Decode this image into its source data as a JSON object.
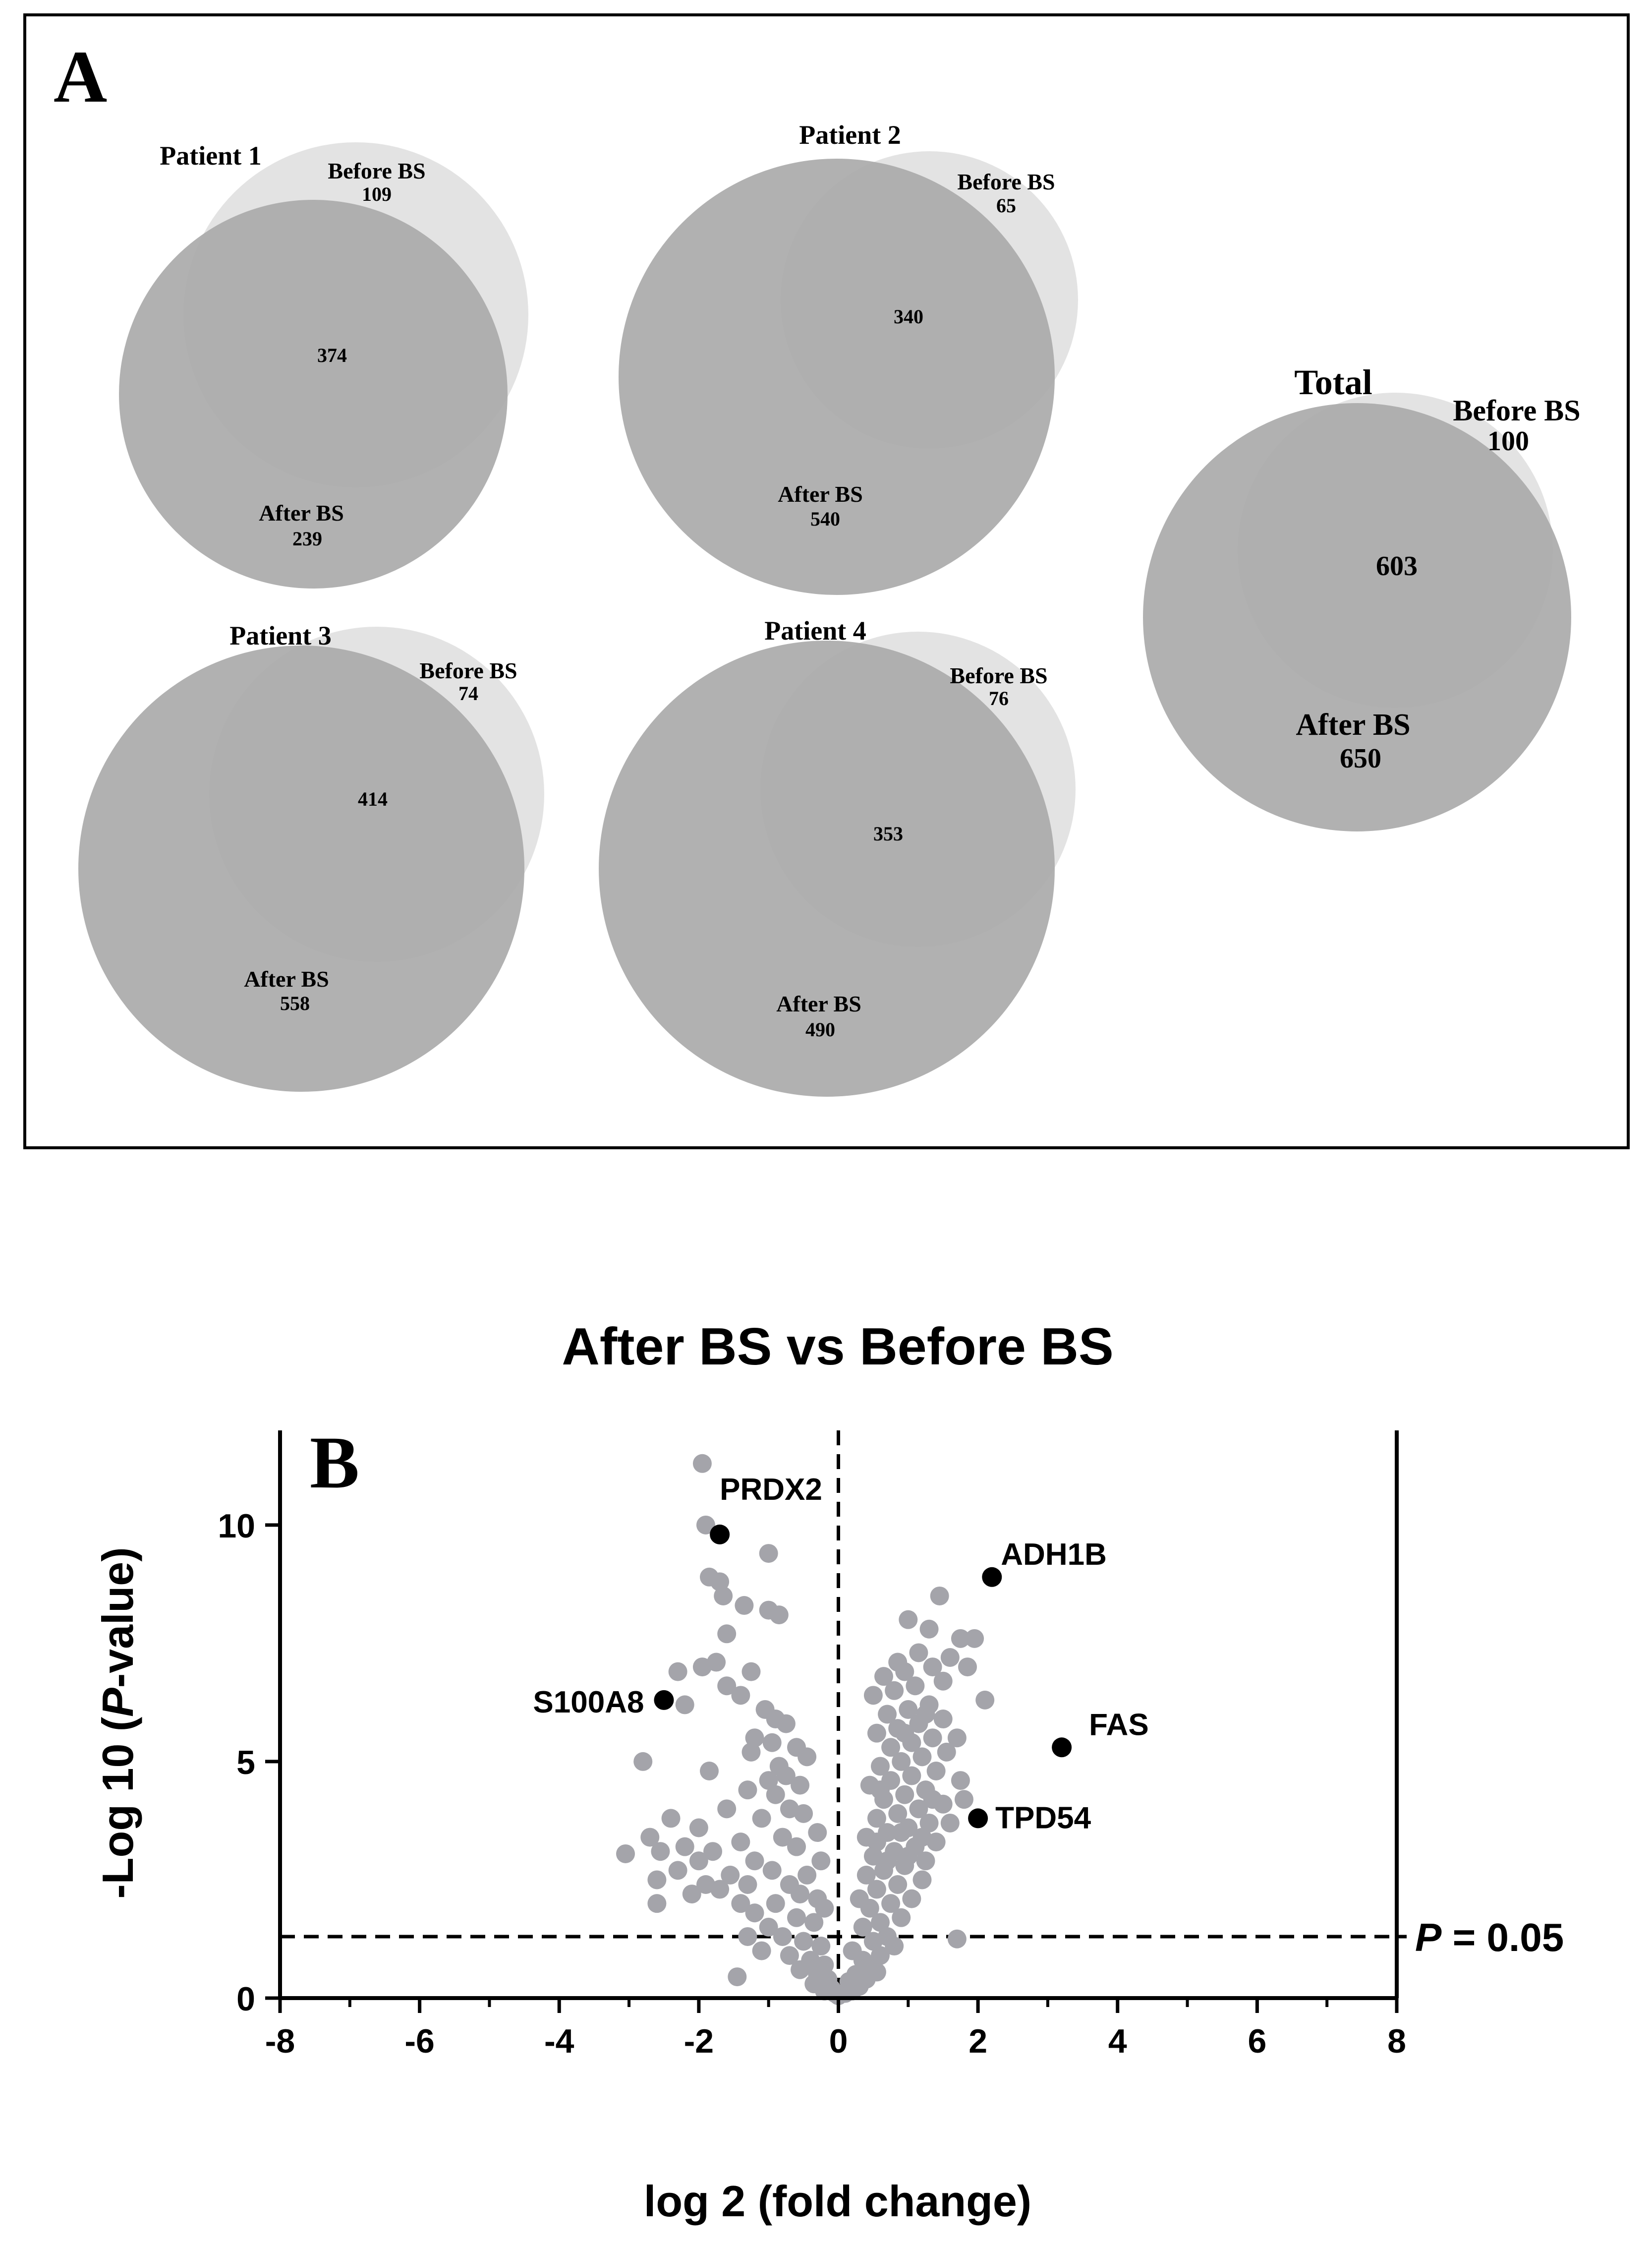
{
  "panel_a": {
    "label": "A",
    "venns": [
      {
        "title": "Patient 1",
        "before_label": "Before BS",
        "before_value": "109",
        "overlap_value": "374",
        "after_label": "After BS",
        "after_value": "239"
      },
      {
        "title": "Patient 2",
        "before_label": "Before BS",
        "before_value": "65",
        "overlap_value": "340",
        "after_label": "After BS",
        "after_value": "540"
      },
      {
        "title": "Patient 3",
        "before_label": "Before BS",
        "before_value": "74",
        "overlap_value": "414",
        "after_label": "After BS",
        "after_value": "558"
      },
      {
        "title": "Patient 4",
        "before_label": "Before BS",
        "before_value": "76",
        "overlap_value": "353",
        "after_label": "After BS",
        "after_value": "490"
      },
      {
        "title": "Total",
        "before_label": "Before BS",
        "before_value": "100",
        "overlap_value": "603",
        "after_label": "After BS",
        "after_value": "650"
      }
    ],
    "colors": {
      "before": "#e3e3e3",
      "after": "#a8a8a8",
      "overlap": "#979797",
      "border": "#000000"
    }
  },
  "chart_data": {
    "type": "scatter",
    "panel_label": "B",
    "title": "After BS vs Before BS",
    "xlabel": "log 2 (fold change)",
    "ylabel_parts": [
      "-Log 10 (",
      "P",
      "-value)"
    ],
    "xlim": [
      -8,
      8
    ],
    "ylim": [
      0,
      12
    ],
    "xticks": [
      "-8",
      "-6",
      "-4",
      "-2",
      "0",
      "2",
      "4",
      "6",
      "8"
    ],
    "yticks": [
      "0",
      "5",
      "10"
    ],
    "threshold": {
      "y": 1.3,
      "label_italic": "P",
      "label_rest": " = 0.05"
    },
    "vertical_line_x": 0,
    "highlighted": [
      {
        "label": "PRDX2",
        "x": -1.7,
        "y": 9.8
      },
      {
        "label": "ADH1B",
        "x": 2.2,
        "y": 8.9
      },
      {
        "label": "S100A8",
        "x": -2.5,
        "y": 6.3
      },
      {
        "label": "FAS",
        "x": 3.2,
        "y": 5.3
      },
      {
        "label": "TPD54",
        "x": 2.0,
        "y": 3.8
      }
    ],
    "points": [
      [
        -1.95,
        11.3
      ],
      [
        -1.9,
        10.0
      ],
      [
        -1.0,
        9.4
      ],
      [
        -1.85,
        8.9
      ],
      [
        -1.7,
        8.8
      ],
      [
        -1.65,
        8.5
      ],
      [
        -1.35,
        8.3
      ],
      [
        -1.0,
        8.2
      ],
      [
        -0.85,
        8.1
      ],
      [
        -1.6,
        7.7
      ],
      [
        -2.3,
        6.9
      ],
      [
        -1.95,
        7.0
      ],
      [
        -1.75,
        7.1
      ],
      [
        -1.25,
        6.9
      ],
      [
        -1.6,
        6.6
      ],
      [
        -1.4,
        6.4
      ],
      [
        -2.2,
        6.2
      ],
      [
        -1.05,
        6.1
      ],
      [
        -0.9,
        5.9
      ],
      [
        -0.75,
        5.8
      ],
      [
        -1.2,
        5.5
      ],
      [
        -0.95,
        5.4
      ],
      [
        -0.6,
        5.3
      ],
      [
        -1.25,
        5.2
      ],
      [
        -0.45,
        5.1
      ],
      [
        -0.85,
        4.9
      ],
      [
        -1.85,
        4.8
      ],
      [
        -1.0,
        4.6
      ],
      [
        -0.75,
        4.7
      ],
      [
        -0.55,
        4.5
      ],
      [
        -2.8,
        5.0
      ],
      [
        -1.3,
        4.4
      ],
      [
        -0.9,
        4.3
      ],
      [
        -0.7,
        4.0
      ],
      [
        -1.6,
        4.0
      ],
      [
        -2.4,
        3.8
      ],
      [
        -1.1,
        3.8
      ],
      [
        -0.5,
        3.9
      ],
      [
        -2.0,
        3.6
      ],
      [
        -0.3,
        3.5
      ],
      [
        -2.7,
        3.4
      ],
      [
        -1.4,
        3.3
      ],
      [
        -0.8,
        3.4
      ],
      [
        -2.2,
        3.2
      ],
      [
        -2.55,
        3.1
      ],
      [
        -1.8,
        3.1
      ],
      [
        -0.6,
        3.2
      ],
      [
        -3.05,
        3.05
      ],
      [
        -2.0,
        2.9
      ],
      [
        -1.2,
        2.9
      ],
      [
        -0.25,
        2.9
      ],
      [
        -2.3,
        2.7
      ],
      [
        -1.55,
        2.6
      ],
      [
        -0.95,
        2.7
      ],
      [
        -0.45,
        2.6
      ],
      [
        -2.6,
        2.5
      ],
      [
        -1.9,
        2.4
      ],
      [
        -1.3,
        2.4
      ],
      [
        -0.7,
        2.4
      ],
      [
        -2.1,
        2.2
      ],
      [
        -1.7,
        2.3
      ],
      [
        -0.55,
        2.2
      ],
      [
        -0.3,
        2.1
      ],
      [
        -2.6,
        2.0
      ],
      [
        -1.4,
        2.0
      ],
      [
        -0.9,
        2.0
      ],
      [
        -0.2,
        1.9
      ],
      [
        -1.2,
        1.8
      ],
      [
        -0.6,
        1.7
      ],
      [
        -0.35,
        1.6
      ],
      [
        -1.0,
        1.5
      ],
      [
        -0.8,
        1.3
      ],
      [
        -1.3,
        1.3
      ],
      [
        -0.5,
        1.2
      ],
      [
        -0.25,
        1.1
      ],
      [
        -1.1,
        1.0
      ],
      [
        -0.7,
        0.9
      ],
      [
        -0.4,
        0.8
      ],
      [
        -0.2,
        0.7
      ],
      [
        -0.55,
        0.6
      ],
      [
        -0.3,
        0.5
      ],
      [
        -0.15,
        0.4
      ],
      [
        -1.45,
        0.45
      ],
      [
        -0.35,
        0.3
      ],
      [
        -0.1,
        0.2
      ],
      [
        -0.2,
        0.15
      ],
      [
        -0.05,
        0.1
      ],
      [
        0.0,
        0.05
      ],
      [
        0.1,
        0.1
      ],
      [
        0.2,
        0.15
      ],
      [
        0.3,
        0.25
      ],
      [
        0.15,
        0.35
      ],
      [
        0.4,
        0.4
      ],
      [
        0.25,
        0.5
      ],
      [
        0.55,
        0.55
      ],
      [
        0.45,
        0.7
      ],
      [
        0.35,
        0.8
      ],
      [
        0.6,
        0.9
      ],
      [
        0.2,
        1.0
      ],
      [
        0.8,
        1.1
      ],
      [
        0.5,
        1.2
      ],
      [
        0.7,
        1.3
      ],
      [
        1.7,
        1.25
      ],
      [
        0.35,
        1.5
      ],
      [
        0.6,
        1.6
      ],
      [
        0.9,
        1.7
      ],
      [
        0.45,
        1.9
      ],
      [
        0.75,
        2.0
      ],
      [
        1.05,
        2.1
      ],
      [
        0.3,
        2.1
      ],
      [
        0.55,
        2.3
      ],
      [
        0.85,
        2.4
      ],
      [
        1.2,
        2.5
      ],
      [
        0.4,
        2.6
      ],
      [
        0.65,
        2.7
      ],
      [
        0.95,
        2.8
      ],
      [
        1.25,
        2.9
      ],
      [
        0.5,
        3.0
      ],
      [
        0.8,
        3.1
      ],
      [
        1.1,
        3.2
      ],
      [
        1.4,
        3.3
      ],
      [
        0.4,
        3.4
      ],
      [
        0.7,
        3.5
      ],
      [
        1.0,
        3.6
      ],
      [
        1.3,
        3.7
      ],
      [
        0.55,
        3.8
      ],
      [
        0.85,
        3.9
      ],
      [
        1.15,
        4.0
      ],
      [
        1.5,
        4.1
      ],
      [
        0.65,
        4.2
      ],
      [
        0.95,
        4.3
      ],
      [
        1.25,
        4.4
      ],
      [
        0.45,
        4.5
      ],
      [
        0.75,
        4.6
      ],
      [
        1.05,
        4.7
      ],
      [
        1.4,
        4.8
      ],
      [
        1.75,
        4.6
      ],
      [
        0.6,
        4.9
      ],
      [
        0.9,
        5.0
      ],
      [
        1.2,
        5.1
      ],
      [
        1.55,
        5.2
      ],
      [
        0.75,
        5.3
      ],
      [
        1.05,
        5.4
      ],
      [
        1.35,
        5.5
      ],
      [
        0.55,
        5.6
      ],
      [
        0.85,
        5.7
      ],
      [
        1.15,
        5.8
      ],
      [
        1.5,
        5.9
      ],
      [
        0.7,
        6.0
      ],
      [
        1.0,
        6.1
      ],
      [
        1.3,
        6.2
      ],
      [
        2.1,
        6.3
      ],
      [
        0.5,
        6.4
      ],
      [
        0.8,
        6.5
      ],
      [
        1.1,
        6.6
      ],
      [
        1.5,
        6.7
      ],
      [
        0.65,
        6.8
      ],
      [
        0.95,
        6.9
      ],
      [
        1.35,
        7.0
      ],
      [
        1.6,
        7.2
      ],
      [
        1.85,
        7.0
      ],
      [
        0.85,
        7.1
      ],
      [
        1.15,
        7.3
      ],
      [
        1.75,
        7.6
      ],
      [
        1.95,
        7.6
      ],
      [
        1.3,
        7.8
      ],
      [
        1.0,
        8.0
      ],
      [
        1.45,
        8.5
      ],
      [
        0.55,
        3.3
      ],
      [
        0.9,
        3.5
      ],
      [
        1.2,
        3.4
      ],
      [
        0.7,
        2.9
      ],
      [
        1.0,
        3.0
      ],
      [
        0.6,
        4.4
      ],
      [
        1.6,
        3.7
      ],
      [
        1.35,
        4.2
      ],
      [
        1.7,
        5.5
      ],
      [
        1.8,
        4.2
      ],
      [
        0.95,
        5.6
      ],
      [
        1.25,
        6.0
      ]
    ]
  }
}
